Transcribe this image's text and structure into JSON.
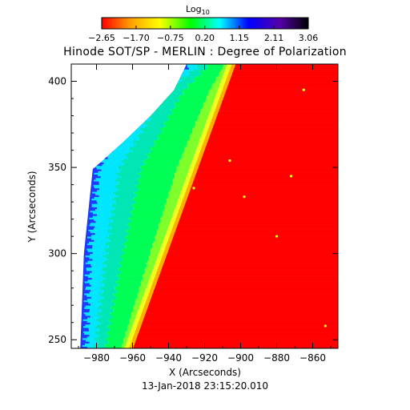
{
  "chart_data": {
    "type": "heatmap",
    "title": "Hinode SOT/SP - MERLIN : Degree of Polarization",
    "xlabel": "X (Arcseconds)",
    "ylabel": "Y (Arcseconds)",
    "footer": "13-Jan-2018 23:15:20.010",
    "xlim": [
      -994,
      -846
    ],
    "ylim": [
      245,
      410
    ],
    "x_ticks": [
      -980,
      -960,
      -940,
      -920,
      -900,
      -880,
      -860
    ],
    "y_ticks": [
      250,
      300,
      350,
      400
    ],
    "x_tick_labels": [
      "−980",
      "−960",
      "−940",
      "−920",
      "−900",
      "−880",
      "−860"
    ],
    "y_tick_labels": [
      "250",
      "300",
      "350",
      "400"
    ],
    "colorbar": {
      "label_main": "Log",
      "label_sub": "10",
      "range": [
        -2.65,
        3.06
      ],
      "ticks": [
        -2.65,
        -1.7,
        -0.75,
        0.2,
        1.15,
        2.11,
        3.06
      ],
      "tick_labels": [
        "−2.65",
        "−1.70",
        "−0.75",
        "0.20",
        "1.15",
        "2.11",
        "3.06"
      ],
      "colors": [
        "#ff0000",
        "#ffa000",
        "#ffff00",
        "#00ff00",
        "#00ffff",
        "#0000ff",
        "#5500aa",
        "#000000"
      ]
    },
    "colors": {
      "red": "#ff0000",
      "orange": "#ffb000",
      "yellow": "#f2ff1a",
      "light_green": "#7fff2a",
      "green": "#00ff55",
      "teal": "#00e6b4",
      "cyan": "#00e6ff",
      "blue": "#1a3cff",
      "white": "#ffffff"
    },
    "limb_edge": [
      {
        "y": 245,
        "x": -962
      },
      {
        "y": 410,
        "x": -905
      }
    ],
    "offdisk_edge": [
      {
        "y": 245,
        "x": -989
      },
      {
        "y": 300,
        "x": -987
      },
      {
        "y": 350,
        "x": -982
      },
      {
        "y": 375,
        "x": -966
      },
      {
        "y": 395,
        "x": -952
      },
      {
        "y": 410,
        "x": -930
      }
    ],
    "empty_region_edge": [
      {
        "y": 410,
        "x": -930
      },
      {
        "y": 395,
        "x": -937
      },
      {
        "y": 380,
        "x": -950
      },
      {
        "y": 365,
        "x": -965
      },
      {
        "y": 350,
        "x": -981
      },
      {
        "y": 340,
        "x": -994
      }
    ]
  }
}
